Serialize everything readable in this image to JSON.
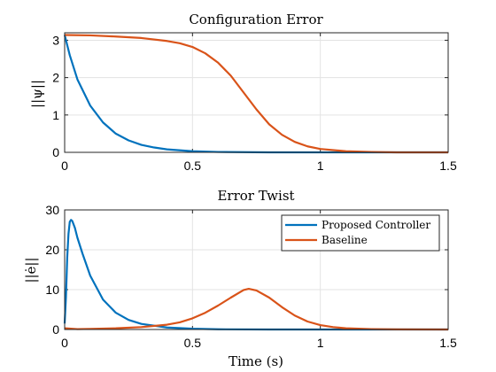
{
  "chart_data": [
    {
      "type": "line",
      "title": "Configuration Error",
      "ylabel": "||ψ||",
      "xlabel": "",
      "xlim": [
        0,
        1.5
      ],
      "ylim": [
        0,
        3.2
      ],
      "xticks": [
        "0",
        "0.5",
        "1",
        "1.5"
      ],
      "yticks": [
        "0",
        "1",
        "2",
        "3"
      ],
      "grid": true,
      "series": [
        {
          "color": "#0072BD",
          "x": [
            0,
            0.02,
            0.05,
            0.1,
            0.15,
            0.2,
            0.25,
            0.3,
            0.35,
            0.4,
            0.5,
            0.6,
            0.8,
            1.0,
            1.5
          ],
          "y": [
            3.14,
            2.6,
            1.95,
            1.25,
            0.8,
            0.5,
            0.32,
            0.2,
            0.13,
            0.08,
            0.03,
            0.01,
            0.0,
            0.0,
            0.0
          ]
        },
        {
          "color": "#D95319",
          "x": [
            0,
            0.1,
            0.2,
            0.3,
            0.4,
            0.45,
            0.5,
            0.55,
            0.6,
            0.65,
            0.7,
            0.75,
            0.8,
            0.85,
            0.9,
            0.95,
            1.0,
            1.1,
            1.2,
            1.3,
            1.5
          ],
          "y": [
            3.14,
            3.13,
            3.1,
            3.06,
            2.98,
            2.92,
            2.82,
            2.65,
            2.4,
            2.05,
            1.6,
            1.15,
            0.75,
            0.47,
            0.28,
            0.16,
            0.09,
            0.03,
            0.01,
            0.0,
            0.0
          ]
        }
      ]
    },
    {
      "type": "line",
      "title": "Error Twist",
      "ylabel": "||ė||",
      "xlabel": "Time (s)",
      "xlim": [
        0,
        1.5
      ],
      "ylim": [
        0,
        30
      ],
      "xticks": [
        "0",
        "0.5",
        "1",
        "1.5"
      ],
      "yticks": [
        "0",
        "10",
        "20",
        "30"
      ],
      "grid": true,
      "legend": "top-right",
      "series": [
        {
          "name": "Proposed Controller",
          "color": "#0072BD",
          "x": [
            0,
            0.005,
            0.01,
            0.015,
            0.02,
            0.025,
            0.03,
            0.04,
            0.05,
            0.07,
            0.1,
            0.15,
            0.2,
            0.25,
            0.3,
            0.4,
            0.5,
            0.6,
            0.8,
            1.0,
            1.5
          ],
          "y": [
            1.5,
            8,
            18,
            24,
            27,
            27.5,
            27.2,
            25.5,
            23,
            19,
            13.5,
            7.5,
            4.2,
            2.4,
            1.4,
            0.5,
            0.2,
            0.05,
            0,
            0,
            0
          ]
        },
        {
          "name": "Baseline",
          "color": "#D95319",
          "x": [
            0,
            0.05,
            0.1,
            0.2,
            0.3,
            0.4,
            0.45,
            0.5,
            0.55,
            0.6,
            0.65,
            0.7,
            0.72,
            0.75,
            0.8,
            0.85,
            0.9,
            0.95,
            1.0,
            1.05,
            1.1,
            1.2,
            1.3,
            1.5
          ],
          "y": [
            0.3,
            0.1,
            0.15,
            0.3,
            0.6,
            1.2,
            1.8,
            2.8,
            4.2,
            6.0,
            8.0,
            9.9,
            10.2,
            9.8,
            8.0,
            5.6,
            3.5,
            2.0,
            1.1,
            0.6,
            0.3,
            0.1,
            0.02,
            0
          ]
        }
      ]
    }
  ]
}
